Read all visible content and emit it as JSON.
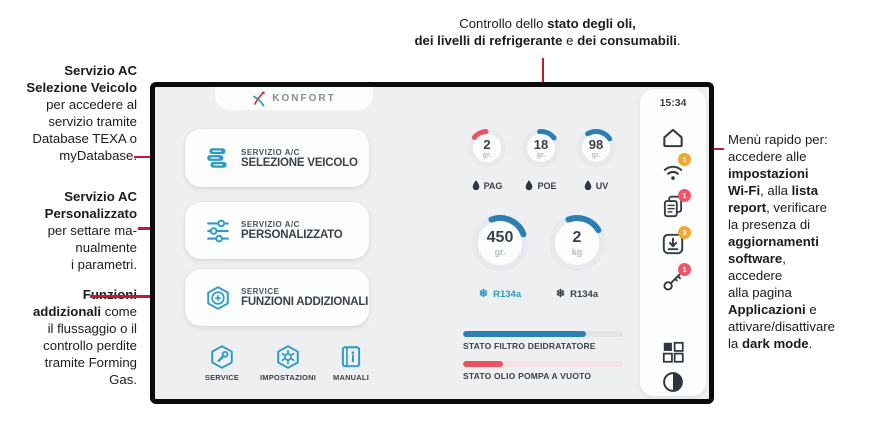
{
  "accent": {
    "callout_red": "#c6192e",
    "teal": "#2d9bc1",
    "blue": "#2b7fb3",
    "red": "#e85565",
    "badge_orange": "#f2a731",
    "badge_red": "#f2556a",
    "dark_text": "#3b424a"
  },
  "annotations": {
    "top": {
      "lines": [
        [
          {
            "t": "Controllo dello "
          },
          {
            "t": "stato degli oli,",
            "b": true
          }
        ],
        [
          {
            "t": "dei livelli di refrigerante",
            "b": true
          },
          {
            "t": " e "
          },
          {
            "t": "dei consumabili",
            "b": true
          },
          {
            "t": "."
          }
        ]
      ]
    },
    "left1": {
      "lines": [
        [
          {
            "t": "Servizio AC",
            "b": true
          }
        ],
        [
          {
            "t": "Selezione Veicolo",
            "b": true
          }
        ],
        [
          {
            "t": "per accedere al"
          }
        ],
        [
          {
            "t": "servizio tramite"
          }
        ],
        [
          {
            "t": "Database TEXA o"
          }
        ],
        [
          {
            "t": "myDatabase."
          }
        ]
      ]
    },
    "left2": {
      "lines": [
        [
          {
            "t": "Servizio AC",
            "b": true
          }
        ],
        [
          {
            "t": "Personalizzato",
            "b": true
          }
        ],
        [
          {
            "t": "per settare ma-"
          }
        ],
        [
          {
            "t": "nualmente"
          }
        ],
        [
          {
            "t": "i parametri."
          }
        ]
      ]
    },
    "left3": {
      "lines": [
        [
          {
            "t": "Funzioni",
            "b": true
          }
        ],
        [
          {
            "t": "addizionali",
            "b": true
          },
          {
            "t": " come"
          }
        ],
        [
          {
            "t": "il flussaggio o il"
          }
        ],
        [
          {
            "t": "controllo perdite"
          }
        ],
        [
          {
            "t": "tramite Forming"
          }
        ],
        [
          {
            "t": "Gas."
          }
        ]
      ]
    },
    "right": {
      "lines": [
        [
          {
            "t": "Menù rapido per:"
          }
        ],
        [
          {
            "t": "accedere alle"
          }
        ],
        [
          {
            "t": "impostazioni",
            "b": true
          }
        ],
        [
          {
            "t": "Wi-Fi",
            "b": true
          },
          {
            "t": ", alla "
          },
          {
            "t": "lista",
            "b": true
          }
        ],
        [
          {
            "t": "report",
            "b": true
          },
          {
            "t": ", verificare"
          }
        ],
        [
          {
            "t": "la presenza di"
          }
        ],
        [
          {
            "t": "aggiornamenti",
            "b": true
          }
        ],
        [
          {
            "t": "software",
            "b": true
          },
          {
            "t": ","
          }
        ],
        [
          {
            "t": "accedere"
          }
        ],
        [
          {
            "t": "alla pagina"
          }
        ],
        [
          {
            "t": "Applicazioni",
            "b": true
          },
          {
            "t": " e"
          }
        ],
        [
          {
            "t": "attivare/disattivare"
          }
        ],
        [
          {
            "t": "la "
          },
          {
            "t": "dark mode",
            "b": true
          },
          {
            "t": "."
          }
        ]
      ]
    }
  },
  "screen": {
    "logo_text": "KONFORT",
    "time": "15:34",
    "buttons": [
      {
        "icon": "vehicle-select-stack-icon",
        "line1": "SERVIZIO A/C",
        "line2": "SELEZIONE VEICOLO"
      },
      {
        "icon": "sliders-icon",
        "line1": "SERVIZIO A/C",
        "line2": "PERSONALIZZATO"
      },
      {
        "icon": "plus-hexagon-icon",
        "line1": "SERVICE",
        "line2": "FUNZIONI ADDIZIONALI"
      }
    ],
    "bottom_nav": [
      {
        "icon": "service-wrench-icon",
        "label": "SERVICE"
      },
      {
        "icon": "settings-gear-icon",
        "label": "IMPOSTAZIONI"
      },
      {
        "icon": "manuals-book-icon",
        "label": "MANUALI"
      }
    ],
    "small_gauges": [
      {
        "value": "2",
        "unit": "gr.",
        "label": "PAG",
        "percent": 13,
        "color": "#e85565"
      },
      {
        "value": "18",
        "unit": "gr.",
        "label": "POE",
        "percent": 16,
        "color": "#2b7fb3"
      },
      {
        "value": "98",
        "unit": "gr.",
        "label": "UV",
        "percent": 24,
        "color": "#2b7fb3"
      }
    ],
    "big_gauges": [
      {
        "value": "450",
        "unit": "gr.",
        "label": "R134a",
        "percent": 25,
        "color": "#2b7fb3",
        "label_color": "#2d9bc1"
      },
      {
        "value": "2",
        "unit": "kg",
        "label": "R134a",
        "percent": 22,
        "color": "#2b7fb3",
        "label_color": "#3b424a"
      }
    ],
    "status_bars": [
      {
        "label": "STATO FILTRO DEIDRATATORE",
        "percent": 77,
        "color": "#2b7fb3",
        "track": "#e2e5e8"
      },
      {
        "label": "STATO OLIO POMPA A VUOTO",
        "percent": 25,
        "color": "#e85560",
        "track": "#f6e2e4"
      }
    ],
    "sidebar": {
      "time": "15:34",
      "items": [
        {
          "icon": "home-icon",
          "badge": "",
          "badge_color": ""
        },
        {
          "icon": "wifi-icon",
          "badge": "1",
          "badge_color": "#f2a731"
        },
        {
          "icon": "report-list-icon",
          "badge": "1",
          "badge_color": "#f2556a"
        },
        {
          "icon": "download-update-icon",
          "badge": "3",
          "badge_color": "#f2a731"
        },
        {
          "icon": "key-icon",
          "badge": "1",
          "badge_color": "#f2556a"
        },
        {
          "icon": "apps-grid-icon",
          "badge": "",
          "badge_color": ""
        },
        {
          "icon": "dark-mode-icon",
          "badge": "",
          "badge_color": ""
        }
      ]
    }
  }
}
